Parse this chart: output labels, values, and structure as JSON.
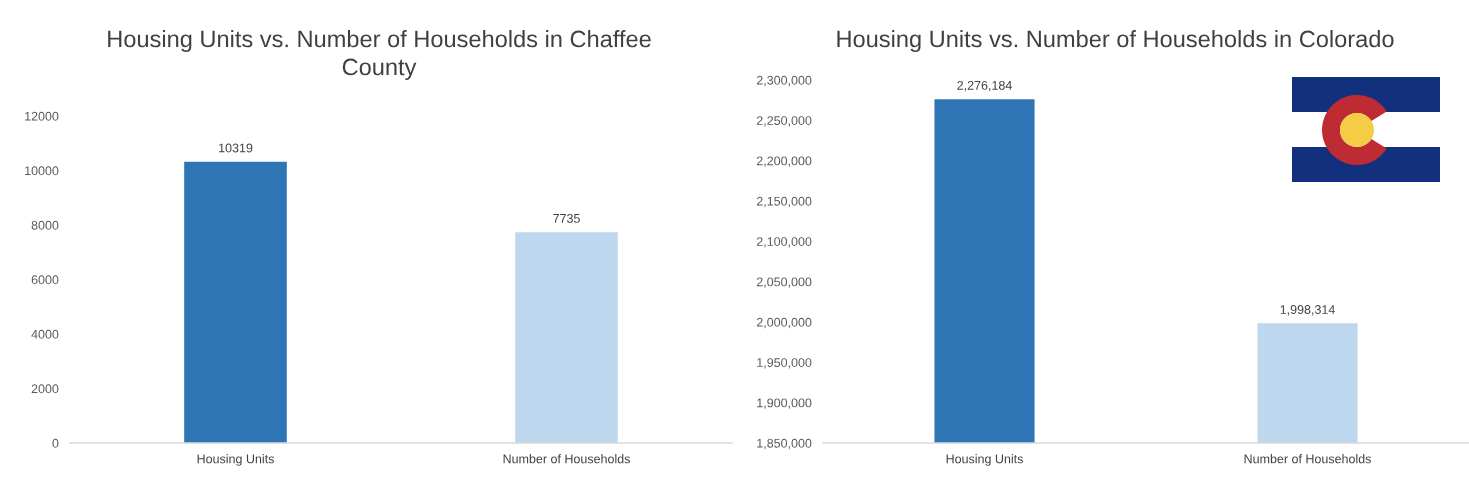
{
  "chart_data": [
    {
      "type": "bar",
      "title": "Housing Units vs. Number of Households in Chaffee County",
      "categories": [
        "Housing Units",
        "Number of Households"
      ],
      "values": [
        10319,
        7735
      ],
      "colors": [
        "#2e75b6",
        "#bdd7ee"
      ],
      "ylim": [
        0,
        12000
      ],
      "yticks": [
        0,
        2000,
        4000,
        6000,
        8000,
        10000,
        12000
      ],
      "data_labels": true
    },
    {
      "type": "bar",
      "title": "Housing Units vs. Number of Households in Colorado",
      "categories": [
        "Housing Units",
        "Number of Households"
      ],
      "values": [
        2276184,
        1998314
      ],
      "colors": [
        "#2e75b6",
        "#bdd7ee"
      ],
      "ylim": [
        1850000,
        2300000
      ],
      "yticks": [
        {
          "value": 1850000,
          "label": "1,850,000"
        },
        {
          "value": 1900000,
          "label": "1,900,000"
        },
        {
          "value": 1950000,
          "label": "1,950,000"
        },
        {
          "value": 2000000,
          "label": "2,000,000"
        },
        {
          "value": 2050000,
          "label": "2,050,000"
        },
        {
          "value": 2100000,
          "label": "2,100,000"
        },
        {
          "value": 2150000,
          "label": "2,150,000"
        },
        {
          "value": 2200000,
          "label": "2,200,000"
        },
        {
          "value": 2250000,
          "label": "2,250,000"
        },
        {
          "value": 2300000,
          "label": "2,300,000"
        }
      ],
      "value_labels": [
        "2,276,184",
        "1,998,314"
      ]
    }
  ]
}
